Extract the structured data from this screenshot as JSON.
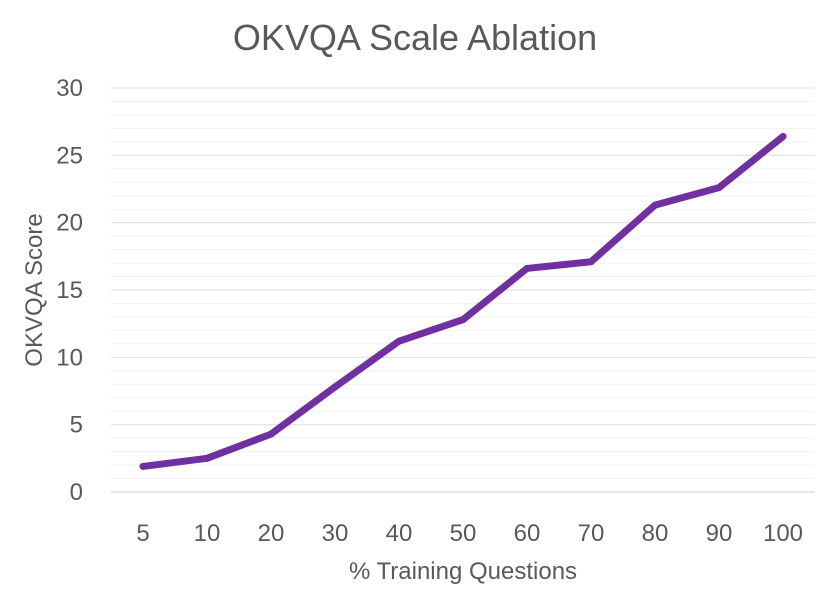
{
  "chart_data": {
    "type": "line",
    "title": "OKVQA Scale Ablation",
    "xlabel": "% Training Questions",
    "ylabel": "OKVQA Score",
    "categories": [
      "5",
      "10",
      "20",
      "30",
      "40",
      "50",
      "60",
      "70",
      "80",
      "90",
      "100"
    ],
    "series": [
      {
        "name": "OKVQA Score",
        "color": "#7030A0",
        "values": [
          1.9,
          2.5,
          4.3,
          7.8,
          11.2,
          12.8,
          16.6,
          17.1,
          21.3,
          22.6,
          26.4
        ]
      }
    ],
    "ylim": [
      0,
      30
    ],
    "yticks": [
      "0",
      "5",
      "10",
      "15",
      "20",
      "25",
      "30"
    ],
    "minor_gridlines": true
  }
}
